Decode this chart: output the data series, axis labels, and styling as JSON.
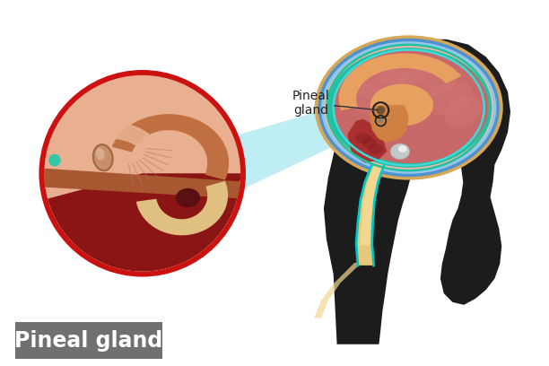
{
  "title": "Pineal gland",
  "label_pineal": "Pineal\ngland",
  "bg_color": "#ffffff",
  "head_color": "#1c1c1c",
  "skull_bone": "#d4a857",
  "dura_pink": "#f0b8a8",
  "cortex_pink": "#c96868",
  "cortex_pink2": "#d47878",
  "orange_inner": "#e8a060",
  "orange_mid": "#d08040",
  "brainstem_yellow": "#e8c87a",
  "brainstem_cream": "#f0d890",
  "cyan1": "#00c8c8",
  "cyan2": "#40d8d8",
  "blue_dura": "#5090d0",
  "light_blue_dura": "#90c8e8",
  "teal_inner": "#20c0a0",
  "cerebellum_red": "#aa3030",
  "pituitary_gray": "#c0c8c8",
  "zoom_red": "#cc1111",
  "zoom_bg": "#e8956a",
  "zoom_brown1": "#c07040",
  "zoom_brown2": "#a85830",
  "zoom_dark_red": "#8b1515",
  "zoom_peach": "#e8b090",
  "zoom_cream": "#e0c080",
  "pineal_tan": "#c8906a",
  "pineal_dark": "#a06840",
  "teal_dot": "#30c8a8",
  "label_box": "#707070",
  "label_text": "#ffffff",
  "beam_cyan": "#a8e8f0",
  "annotation_color": "#222222"
}
